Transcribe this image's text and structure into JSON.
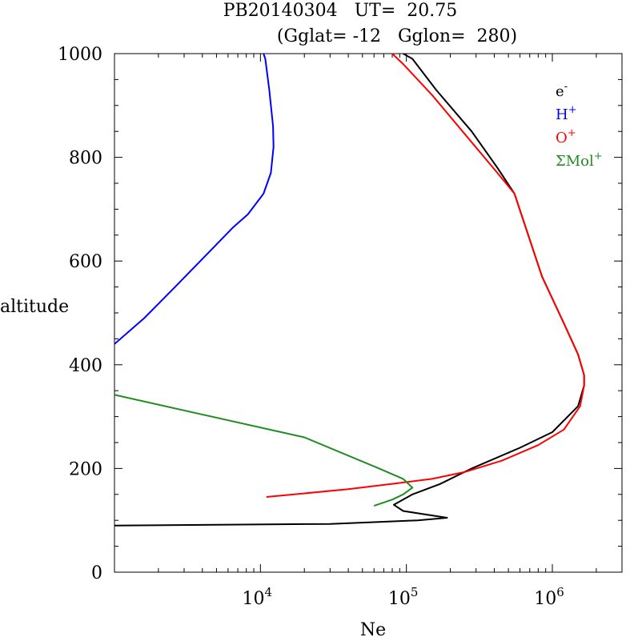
{
  "chart_data": {
    "type": "line",
    "title_line1": "PB20140304   UT=  20.75",
    "title_line2": "(Gglat= -12   Gglon=  280)",
    "xlabel": "Ne",
    "ylabel": "altitude",
    "x_scale": "log",
    "xlim": [
      1000,
      3000000
    ],
    "ylim": [
      0,
      1000
    ],
    "x_tick_labels": [
      {
        "value": 10000,
        "base": "10",
        "exp": "4"
      },
      {
        "value": 100000,
        "base": "10",
        "exp": "5"
      },
      {
        "value": 1000000,
        "base": "10",
        "exp": "6"
      }
    ],
    "y_ticks": [
      0,
      200,
      400,
      600,
      800,
      1000
    ],
    "legend_position": "top-right",
    "series": [
      {
        "name": "e-",
        "label_base": "e",
        "label_sup": "-",
        "color": "#000000",
        "points": [
          [
            1000,
            90
          ],
          [
            30000,
            93
          ],
          [
            120000,
            100
          ],
          [
            190000,
            105
          ],
          [
            130000,
            112
          ],
          [
            95000,
            118
          ],
          [
            82000,
            130
          ],
          [
            110000,
            150
          ],
          [
            170000,
            170
          ],
          [
            280000,
            200
          ],
          [
            600000,
            240
          ],
          [
            1000000,
            270
          ],
          [
            1500000,
            320
          ],
          [
            1650000,
            360
          ],
          [
            1650000,
            380
          ],
          [
            1500000,
            420
          ],
          [
            1200000,
            480
          ],
          [
            850000,
            570
          ],
          [
            550000,
            730
          ],
          [
            420000,
            780
          ],
          [
            280000,
            850
          ],
          [
            160000,
            930
          ],
          [
            110000,
            990
          ],
          [
            95000,
            1000
          ]
        ]
      },
      {
        "name": "H+",
        "label_base": "H",
        "label_sup": "+",
        "color": "#0000ff",
        "points": [
          [
            1000,
            440
          ],
          [
            1600,
            490
          ],
          [
            2600,
            550
          ],
          [
            4200,
            610
          ],
          [
            6500,
            665
          ],
          [
            8200,
            690
          ],
          [
            10500,
            730
          ],
          [
            11800,
            770
          ],
          [
            12300,
            820
          ],
          [
            12200,
            860
          ],
          [
            11500,
            930
          ],
          [
            10800,
            990
          ],
          [
            10500,
            1000
          ]
        ]
      },
      {
        "name": "O+",
        "label_base": "O",
        "label_sup": "+",
        "color": "#ff0000",
        "points": [
          [
            11000,
            145
          ],
          [
            40000,
            160
          ],
          [
            90000,
            172
          ],
          [
            150000,
            180
          ],
          [
            250000,
            193
          ],
          [
            450000,
            215
          ],
          [
            800000,
            245
          ],
          [
            1200000,
            275
          ],
          [
            1550000,
            320
          ],
          [
            1650000,
            360
          ],
          [
            1650000,
            380
          ],
          [
            1500000,
            420
          ],
          [
            1200000,
            480
          ],
          [
            850000,
            570
          ],
          [
            550000,
            730
          ],
          [
            420000,
            770
          ],
          [
            260000,
            840
          ],
          [
            150000,
            920
          ],
          [
            95000,
            980
          ],
          [
            80000,
            1000
          ]
        ]
      },
      {
        "name": "ΣMol+",
        "label_base": "ΣMol",
        "label_sup": "+",
        "color": "#228b22",
        "points": [
          [
            1000,
            342
          ],
          [
            20000,
            260
          ],
          [
            65000,
            200
          ],
          [
            95000,
            180
          ],
          [
            110000,
            163
          ],
          [
            95000,
            150
          ],
          [
            80000,
            140
          ],
          [
            60000,
            128
          ]
        ]
      }
    ]
  }
}
